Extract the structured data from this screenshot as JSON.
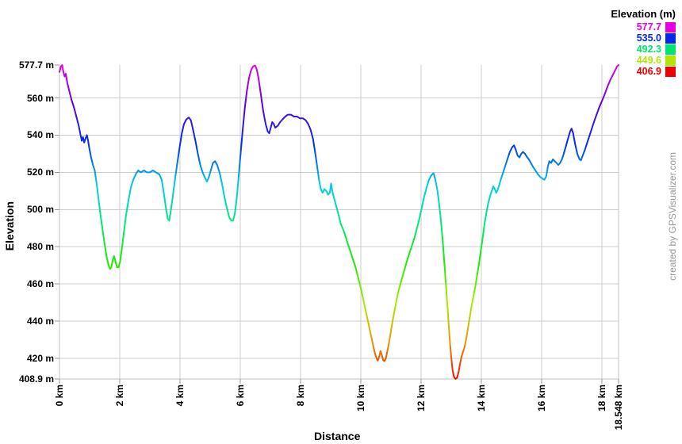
{
  "watermark": {
    "text": "created by GPSVisualizer.com",
    "color": "#999999"
  },
  "chart_data": {
    "type": "line",
    "title": "",
    "xlabel": "Distance",
    "ylabel": "Elevation",
    "x_unit": "km",
    "y_unit": "m",
    "xlim": [
      0,
      18.548
    ],
    "ylim": [
      408.9,
      577.7
    ],
    "grid": true,
    "background": "#ffffff",
    "grid_color": "#cccccc",
    "axis_color": "#c2c2c2",
    "tick_color": "#999999",
    "label_color": "#000000",
    "x_ticks": [
      {
        "value": 0,
        "label": "0 km"
      },
      {
        "value": 2,
        "label": "2 km"
      },
      {
        "value": 4,
        "label": "4 km"
      },
      {
        "value": 6,
        "label": "6 km"
      },
      {
        "value": 8,
        "label": "8 km"
      },
      {
        "value": 10,
        "label": "10 km"
      },
      {
        "value": 12,
        "label": "12 km"
      },
      {
        "value": 14,
        "label": "14 km"
      },
      {
        "value": 16,
        "label": "16 km"
      },
      {
        "value": 18,
        "label": "18 km"
      },
      {
        "value": 18.548,
        "label": "18.548 km"
      }
    ],
    "y_ticks": [
      {
        "value": 577.7,
        "label": "577.7 m"
      },
      {
        "value": 560,
        "label": "560 m"
      },
      {
        "value": 540,
        "label": "540 m"
      },
      {
        "value": 520,
        "label": "520 m"
      },
      {
        "value": 500,
        "label": "500 m"
      },
      {
        "value": 480,
        "label": "480 m"
      },
      {
        "value": 460,
        "label": "460 m"
      },
      {
        "value": 440,
        "label": "440 m"
      },
      {
        "value": 420,
        "label": "420 m"
      },
      {
        "value": 408.9,
        "label": "408.9 m"
      }
    ],
    "legend": {
      "title": "Elevation (m)",
      "position": "top-right",
      "entries": [
        {
          "label": "577.7",
          "color": "#e600e6"
        },
        {
          "label": "535.0",
          "color": "#0028e8"
        },
        {
          "label": "492.3",
          "color": "#00e570"
        },
        {
          "label": "449.6",
          "color": "#b0e600"
        },
        {
          "label": "406.9",
          "color": "#ee0000"
        }
      ]
    },
    "color_scale": {
      "min_value": 406.9,
      "max_value": 577.7,
      "stops": [
        {
          "frac": 0.0,
          "color": "#e600e6"
        },
        {
          "frac": 0.125,
          "color": "#5800eb"
        },
        {
          "frac": 0.25,
          "color": "#0030eb"
        },
        {
          "frac": 0.375,
          "color": "#00cdeb"
        },
        {
          "frac": 0.5,
          "color": "#00eb75"
        },
        {
          "frac": 0.625,
          "color": "#1deb00"
        },
        {
          "frac": 0.75,
          "color": "#b0eb00"
        },
        {
          "frac": 0.875,
          "color": "#eb9300"
        },
        {
          "frac": 1.0,
          "color": "#eb0000"
        }
      ]
    },
    "series": [
      {
        "name": "elevation-profile",
        "points": [
          [
            0,
            574
          ],
          [
            0.05,
            577
          ],
          [
            0.09,
            577.7
          ],
          [
            0.13,
            574
          ],
          [
            0.17,
            571.5
          ],
          [
            0.21,
            573
          ],
          [
            0.26,
            568
          ],
          [
            0.32,
            564
          ],
          [
            0.4,
            559
          ],
          [
            0.48,
            555
          ],
          [
            0.56,
            550
          ],
          [
            0.64,
            545
          ],
          [
            0.7,
            540
          ],
          [
            0.74,
            537
          ],
          [
            0.78,
            539
          ],
          [
            0.82,
            536
          ],
          [
            0.87,
            538.5
          ],
          [
            0.91,
            540
          ],
          [
            0.95,
            537
          ],
          [
            0.99,
            533
          ],
          [
            1.05,
            528
          ],
          [
            1.11,
            524
          ],
          [
            1.17,
            521
          ],
          [
            1.23,
            514
          ],
          [
            1.3,
            505
          ],
          [
            1.37,
            496
          ],
          [
            1.44,
            488
          ],
          [
            1.51,
            480
          ],
          [
            1.57,
            474
          ],
          [
            1.63,
            470
          ],
          [
            1.68,
            468
          ],
          [
            1.72,
            469
          ],
          [
            1.77,
            473
          ],
          [
            1.81,
            475
          ],
          [
            1.86,
            472
          ],
          [
            1.91,
            469
          ],
          [
            1.96,
            469
          ],
          [
            2.01,
            472
          ],
          [
            2.07,
            479
          ],
          [
            2.14,
            488
          ],
          [
            2.21,
            497
          ],
          [
            2.29,
            505
          ],
          [
            2.37,
            512
          ],
          [
            2.45,
            516
          ],
          [
            2.53,
            519
          ],
          [
            2.61,
            521
          ],
          [
            2.7,
            520
          ],
          [
            2.8,
            521
          ],
          [
            2.9,
            520
          ],
          [
            3,
            520
          ],
          [
            3.1,
            521
          ],
          [
            3.2,
            520
          ],
          [
            3.31,
            519
          ],
          [
            3.39,
            516
          ],
          [
            3.46,
            509
          ],
          [
            3.53,
            501
          ],
          [
            3.59,
            495
          ],
          [
            3.64,
            494
          ],
          [
            3.69,
            499
          ],
          [
            3.76,
            507
          ],
          [
            3.83,
            516
          ],
          [
            3.91,
            525
          ],
          [
            3.99,
            534
          ],
          [
            4.06,
            541
          ],
          [
            4.13,
            546
          ],
          [
            4.21,
            548.5
          ],
          [
            4.29,
            549.5
          ],
          [
            4.36,
            548
          ],
          [
            4.43,
            543
          ],
          [
            4.51,
            537
          ],
          [
            4.59,
            530
          ],
          [
            4.67,
            524
          ],
          [
            4.75,
            520
          ],
          [
            4.83,
            517
          ],
          [
            4.89,
            515
          ],
          [
            4.95,
            517
          ],
          [
            5.02,
            521
          ],
          [
            5.09,
            525
          ],
          [
            5.16,
            526
          ],
          [
            5.23,
            524
          ],
          [
            5.31,
            520
          ],
          [
            5.39,
            514
          ],
          [
            5.47,
            507
          ],
          [
            5.55,
            501
          ],
          [
            5.63,
            496
          ],
          [
            5.7,
            494
          ],
          [
            5.76,
            494
          ],
          [
            5.82,
            498
          ],
          [
            5.88,
            506
          ],
          [
            5.94,
            517
          ],
          [
            6.01,
            530
          ],
          [
            6.08,
            543
          ],
          [
            6.15,
            555
          ],
          [
            6.22,
            564
          ],
          [
            6.29,
            571
          ],
          [
            6.36,
            575
          ],
          [
            6.43,
            577
          ],
          [
            6.49,
            577.5
          ],
          [
            6.55,
            575
          ],
          [
            6.61,
            570
          ],
          [
            6.68,
            562
          ],
          [
            6.76,
            553
          ],
          [
            6.84,
            546
          ],
          [
            6.91,
            542
          ],
          [
            6.96,
            541
          ],
          [
            7.01,
            544
          ],
          [
            7.06,
            547
          ],
          [
            7.11,
            546
          ],
          [
            7.16,
            544
          ],
          [
            7.24,
            545
          ],
          [
            7.32,
            547
          ],
          [
            7.4,
            548.5
          ],
          [
            7.49,
            550
          ],
          [
            7.58,
            551
          ],
          [
            7.68,
            551
          ],
          [
            7.78,
            550
          ],
          [
            7.88,
            550
          ],
          [
            7.98,
            549
          ],
          [
            8.08,
            549
          ],
          [
            8.17,
            548
          ],
          [
            8.25,
            546
          ],
          [
            8.33,
            543
          ],
          [
            8.41,
            538
          ],
          [
            8.48,
            531
          ],
          [
            8.55,
            523
          ],
          [
            8.61,
            516
          ],
          [
            8.67,
            511
          ],
          [
            8.73,
            509
          ],
          [
            8.79,
            511
          ],
          [
            8.85,
            510
          ],
          [
            8.91,
            508
          ],
          [
            8.97,
            509
          ],
          [
            9.01,
            514
          ],
          [
            9.05,
            510
          ],
          [
            9.11,
            506
          ],
          [
            9.18,
            502
          ],
          [
            9.26,
            497
          ],
          [
            9.34,
            492
          ],
          [
            9.42,
            489
          ],
          [
            9.5,
            485
          ],
          [
            9.58,
            481
          ],
          [
            9.66,
            477
          ],
          [
            9.74,
            473
          ],
          [
            9.82,
            469
          ],
          [
            9.9,
            464
          ],
          [
            9.98,
            459
          ],
          [
            10.06,
            453
          ],
          [
            10.14,
            447
          ],
          [
            10.22,
            441
          ],
          [
            10.3,
            435
          ],
          [
            10.38,
            429
          ],
          [
            10.46,
            423
          ],
          [
            10.52,
            420
          ],
          [
            10.56,
            418.8
          ],
          [
            10.61,
            421
          ],
          [
            10.65,
            424
          ],
          [
            10.69,
            422
          ],
          [
            10.74,
            419
          ],
          [
            10.78,
            418.5
          ],
          [
            10.83,
            420
          ],
          [
            10.88,
            424
          ],
          [
            10.93,
            428
          ],
          [
            10.99,
            434
          ],
          [
            11.05,
            440
          ],
          [
            11.12,
            446
          ],
          [
            11.19,
            452
          ],
          [
            11.26,
            457
          ],
          [
            11.33,
            461
          ],
          [
            11.4,
            465
          ],
          [
            11.47,
            469
          ],
          [
            11.54,
            473
          ],
          [
            11.62,
            477
          ],
          [
            11.7,
            481
          ],
          [
            11.78,
            485
          ],
          [
            11.86,
            490
          ],
          [
            11.94,
            495
          ],
          [
            12.02,
            501
          ],
          [
            12.1,
            507
          ],
          [
            12.18,
            512
          ],
          [
            12.26,
            516
          ],
          [
            12.34,
            518.5
          ],
          [
            12.41,
            519.5
          ],
          [
            12.47,
            516
          ],
          [
            12.53,
            511
          ],
          [
            12.59,
            504
          ],
          [
            12.65,
            495
          ],
          [
            12.71,
            484
          ],
          [
            12.77,
            471
          ],
          [
            12.83,
            457
          ],
          [
            12.89,
            444
          ],
          [
            12.94,
            432
          ],
          [
            12.99,
            422
          ],
          [
            13.04,
            414
          ],
          [
            13.09,
            410
          ],
          [
            13.14,
            408.9
          ],
          [
            13.19,
            409.5
          ],
          [
            13.24,
            412.5
          ],
          [
            13.29,
            417
          ],
          [
            13.34,
            421
          ],
          [
            13.39,
            423.5
          ],
          [
            13.44,
            426
          ],
          [
            13.5,
            431
          ],
          [
            13.56,
            437
          ],
          [
            13.62,
            443
          ],
          [
            13.68,
            449
          ],
          [
            13.74,
            454
          ],
          [
            13.8,
            459
          ],
          [
            13.86,
            465
          ],
          [
            13.92,
            471
          ],
          [
            13.98,
            478
          ],
          [
            14.04,
            485
          ],
          [
            14.1,
            492
          ],
          [
            14.16,
            498
          ],
          [
            14.22,
            503
          ],
          [
            14.28,
            507
          ],
          [
            14.34,
            510
          ],
          [
            14.39,
            512.5
          ],
          [
            14.44,
            511
          ],
          [
            14.49,
            509
          ],
          [
            14.55,
            511
          ],
          [
            14.62,
            515
          ],
          [
            14.7,
            519
          ],
          [
            14.78,
            523
          ],
          [
            14.86,
            527
          ],
          [
            14.94,
            531
          ],
          [
            15.02,
            533.5
          ],
          [
            15.08,
            534.5
          ],
          [
            15.14,
            532
          ],
          [
            15.2,
            529
          ],
          [
            15.26,
            528
          ],
          [
            15.32,
            530
          ],
          [
            15.38,
            531
          ],
          [
            15.44,
            530
          ],
          [
            15.5,
            528.5
          ],
          [
            15.57,
            527
          ],
          [
            15.64,
            525
          ],
          [
            15.71,
            523
          ],
          [
            15.79,
            521
          ],
          [
            15.87,
            519
          ],
          [
            15.95,
            517.5
          ],
          [
            16.03,
            516.5
          ],
          [
            16.09,
            516
          ],
          [
            16.15,
            518
          ],
          [
            16.2,
            523
          ],
          [
            16.25,
            526
          ],
          [
            16.31,
            525
          ],
          [
            16.37,
            527
          ],
          [
            16.43,
            526
          ],
          [
            16.49,
            525
          ],
          [
            16.55,
            524
          ],
          [
            16.61,
            525
          ],
          [
            16.67,
            527
          ],
          [
            16.73,
            530
          ],
          [
            16.8,
            534
          ],
          [
            16.87,
            538
          ],
          [
            16.94,
            542
          ],
          [
            16.99,
            543.5
          ],
          [
            17.04,
            541
          ],
          [
            17.11,
            535
          ],
          [
            17.18,
            530
          ],
          [
            17.25,
            527
          ],
          [
            17.3,
            526.5
          ],
          [
            17.36,
            529
          ],
          [
            17.43,
            532
          ],
          [
            17.51,
            536
          ],
          [
            17.59,
            540
          ],
          [
            17.67,
            544
          ],
          [
            17.75,
            548
          ],
          [
            17.83,
            551.5
          ],
          [
            17.91,
            555
          ],
          [
            18,
            558.5
          ],
          [
            18.09,
            562
          ],
          [
            18.18,
            566
          ],
          [
            18.27,
            569.5
          ],
          [
            18.36,
            572.5
          ],
          [
            18.44,
            575
          ],
          [
            18.5,
            577
          ],
          [
            18.548,
            577.7
          ]
        ]
      }
    ]
  }
}
